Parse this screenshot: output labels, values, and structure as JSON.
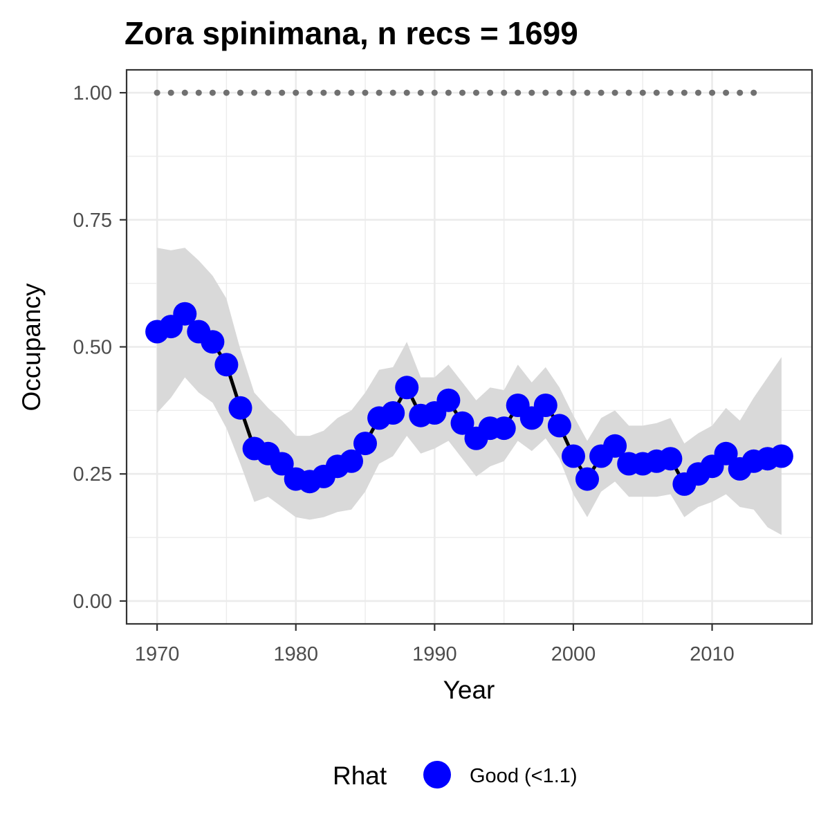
{
  "chart_data": {
    "type": "line",
    "title": "Zora spinimana, n recs = 1699",
    "xlabel": "Year",
    "ylabel": "Occupancy",
    "xlim": [
      1967.8,
      2017.2
    ],
    "ylim": [
      -0.045,
      1.045
    ],
    "x_ticks": [
      1970,
      1980,
      1990,
      2000,
      2010
    ],
    "x_tick_labels": [
      "1970",
      "1980",
      "1990",
      "2000",
      "2010"
    ],
    "y_ticks": [
      0,
      0.25,
      0.5,
      0.75,
      1.0
    ],
    "y_tick_labels": [
      "0.00",
      "0.25",
      "0.50",
      "0.75",
      "1.00"
    ],
    "grid": true,
    "legend": {
      "title": "Rhat",
      "placement": "bottom",
      "entries": [
        {
          "label": "Good (<1.1)",
          "color": "#0000ff"
        }
      ]
    },
    "colors": {
      "point": "#0000ff",
      "line": "#000000",
      "ribbon": "#d9d9d9",
      "reference": "#707070",
      "grid": "#ebebeb",
      "panel_border": "#333333"
    },
    "series": [
      {
        "type": "line",
        "x": [
          1970,
          1971,
          1972,
          1973,
          1974,
          1975,
          1976,
          1977,
          1978,
          1979,
          1980,
          1981,
          1982,
          1983,
          1984,
          1985,
          1986,
          1987,
          1988,
          1989,
          1990,
          1991,
          1992,
          1993,
          1994,
          1995,
          1996,
          1997,
          1998,
          1999,
          2000,
          2001,
          2002,
          2003,
          2004,
          2005,
          2006,
          2007,
          2008,
          2009,
          2010,
          2011,
          2012,
          2013,
          2014,
          2015
        ],
        "values": [
          0.53,
          0.54,
          0.565,
          0.53,
          0.51,
          0.465,
          0.38,
          0.3,
          0.29,
          0.27,
          0.24,
          0.235,
          0.245,
          0.265,
          0.275,
          0.31,
          0.36,
          0.37,
          0.42,
          0.365,
          0.37,
          0.395,
          0.35,
          0.32,
          0.34,
          0.34,
          0.385,
          0.36,
          0.385,
          0.345,
          0.285,
          0.24,
          0.285,
          0.305,
          0.27,
          0.27,
          0.275,
          0.28,
          0.23,
          0.25,
          0.265,
          0.29,
          0.26,
          0.275,
          0.28,
          0.285
        ],
        "lower": [
          0.37,
          0.4,
          0.44,
          0.41,
          0.39,
          0.34,
          0.27,
          0.195,
          0.205,
          0.185,
          0.165,
          0.16,
          0.165,
          0.175,
          0.18,
          0.215,
          0.27,
          0.285,
          0.325,
          0.29,
          0.3,
          0.315,
          0.28,
          0.245,
          0.265,
          0.275,
          0.315,
          0.295,
          0.32,
          0.28,
          0.21,
          0.165,
          0.215,
          0.235,
          0.205,
          0.205,
          0.205,
          0.21,
          0.165,
          0.185,
          0.195,
          0.21,
          0.185,
          0.18,
          0.145,
          0.13
        ],
        "upper": [
          0.695,
          0.69,
          0.695,
          0.67,
          0.64,
          0.595,
          0.495,
          0.41,
          0.38,
          0.355,
          0.325,
          0.325,
          0.335,
          0.36,
          0.375,
          0.41,
          0.455,
          0.46,
          0.51,
          0.44,
          0.44,
          0.465,
          0.43,
          0.395,
          0.42,
          0.415,
          0.465,
          0.43,
          0.46,
          0.42,
          0.365,
          0.315,
          0.36,
          0.375,
          0.345,
          0.345,
          0.35,
          0.36,
          0.31,
          0.33,
          0.345,
          0.38,
          0.355,
          0.4,
          0.44,
          0.48
        ]
      },
      {
        "type": "reference",
        "x": [
          1970,
          1971,
          1972,
          1973,
          1974,
          1975,
          1976,
          1977,
          1978,
          1979,
          1980,
          1981,
          1982,
          1983,
          1984,
          1985,
          1986,
          1987,
          1988,
          1989,
          1990,
          1991,
          1992,
          1993,
          1994,
          1995,
          1996,
          1997,
          1998,
          1999,
          2000,
          2001,
          2002,
          2003,
          2004,
          2005,
          2006,
          2007,
          2008,
          2009,
          2010,
          2011,
          2012,
          2013
        ],
        "value": 1.0
      }
    ]
  }
}
